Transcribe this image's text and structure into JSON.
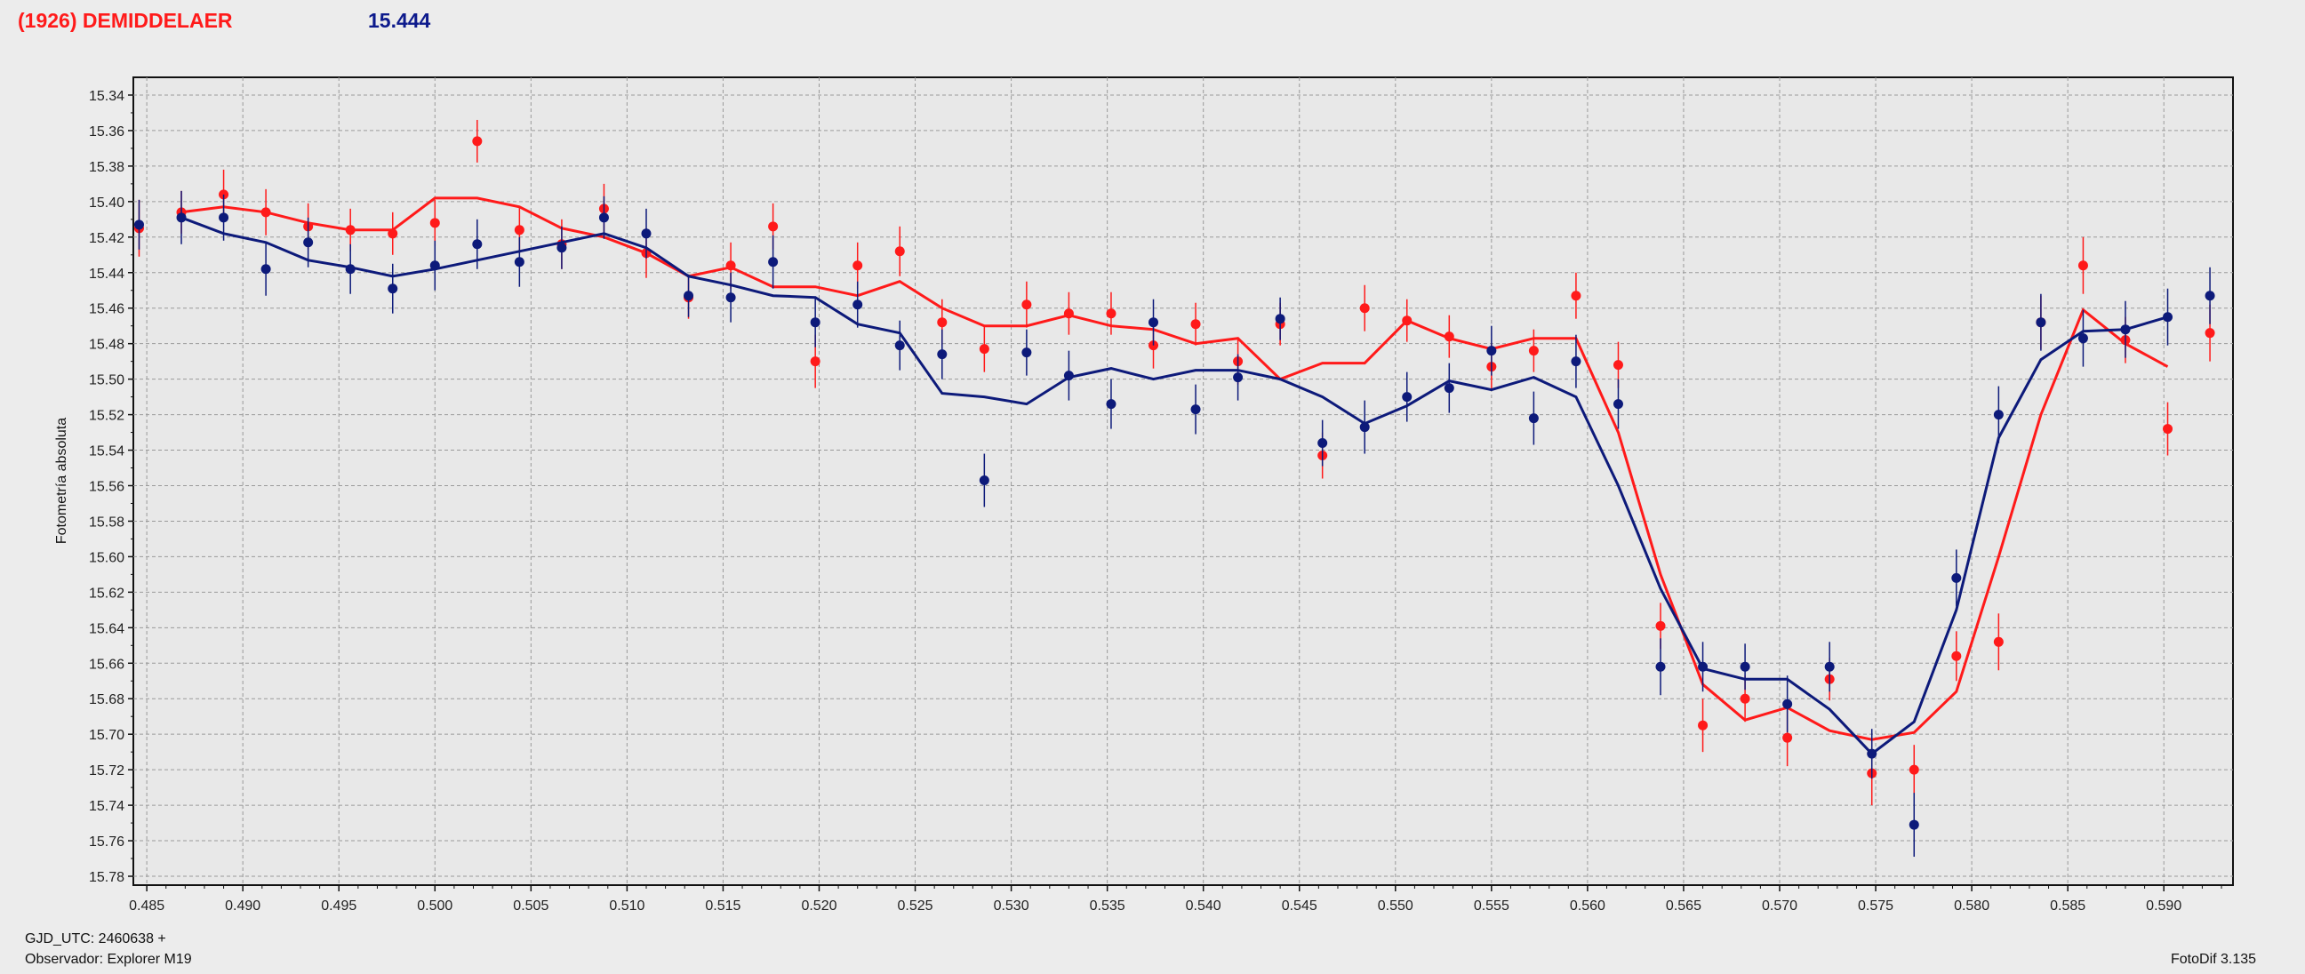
{
  "header": {
    "title": "(1926) DEMIDDELAER",
    "magnitude": "15.444"
  },
  "footer": {
    "gjd": "GJD_UTC: 2460638 +",
    "observer": "Observador: Explorer M19",
    "software": "FotoDif 3.135"
  },
  "colors": {
    "series_red": "#ff1a1a",
    "series_blue": "#0d1a7a",
    "plot_bg": "#e8e8e8"
  },
  "chart_data": {
    "type": "scatter",
    "title": "",
    "xlabel": "",
    "ylabel": "Fotometría absoluta",
    "xlim": [
      0.4843,
      0.5936
    ],
    "ylim": [
      15.33,
      15.785
    ],
    "y_inverted": true,
    "grid": true,
    "x_ticks": [
      "0.485",
      "0.490",
      "0.495",
      "0.500",
      "0.505",
      "0.510",
      "0.515",
      "0.520",
      "0.525",
      "0.530",
      "0.535",
      "0.540",
      "0.545",
      "0.550",
      "0.555",
      "0.560",
      "0.565",
      "0.570",
      "0.575",
      "0.580",
      "0.585",
      "0.590"
    ],
    "y_ticks": [
      "15.34",
      "15.36",
      "15.38",
      "15.40",
      "15.42",
      "15.44",
      "15.46",
      "15.48",
      "15.50",
      "15.52",
      "15.54",
      "15.56",
      "15.58",
      "15.60",
      "15.62",
      "15.64",
      "15.66",
      "15.68",
      "15.70",
      "15.72",
      "15.74",
      "15.76",
      "15.78"
    ],
    "series": [
      {
        "color": "red",
        "points": [
          {
            "x": 0.4846,
            "y": 15.415,
            "err": 0.016
          },
          {
            "x": 0.4868,
            "y": 15.406,
            "err": 0.012
          },
          {
            "x": 0.489,
            "y": 15.396,
            "err": 0.014
          },
          {
            "x": 0.4912,
            "y": 15.406,
            "err": 0.013
          },
          {
            "x": 0.4934,
            "y": 15.414,
            "err": 0.013
          },
          {
            "x": 0.4956,
            "y": 15.416,
            "err": 0.012
          },
          {
            "x": 0.4978,
            "y": 15.418,
            "err": 0.012
          },
          {
            "x": 0.5,
            "y": 15.412,
            "err": 0.013
          },
          {
            "x": 0.5022,
            "y": 15.366,
            "err": 0.012
          },
          {
            "x": 0.5044,
            "y": 15.416,
            "err": 0.013
          },
          {
            "x": 0.5066,
            "y": 15.424,
            "err": 0.014
          },
          {
            "x": 0.5088,
            "y": 15.404,
            "err": 0.014
          },
          {
            "x": 0.511,
            "y": 15.429,
            "err": 0.014
          },
          {
            "x": 0.5132,
            "y": 15.454,
            "err": 0.012
          },
          {
            "x": 0.5154,
            "y": 15.436,
            "err": 0.013
          },
          {
            "x": 0.5176,
            "y": 15.414,
            "err": 0.013
          },
          {
            "x": 0.5198,
            "y": 15.49,
            "err": 0.015
          },
          {
            "x": 0.522,
            "y": 15.436,
            "err": 0.013
          },
          {
            "x": 0.5242,
            "y": 15.428,
            "err": 0.014
          },
          {
            "x": 0.5264,
            "y": 15.468,
            "err": 0.013
          },
          {
            "x": 0.5286,
            "y": 15.483,
            "err": 0.013
          },
          {
            "x": 0.5308,
            "y": 15.458,
            "err": 0.013
          },
          {
            "x": 0.533,
            "y": 15.463,
            "err": 0.012
          },
          {
            "x": 0.5352,
            "y": 15.463,
            "err": 0.012
          },
          {
            "x": 0.5374,
            "y": 15.481,
            "err": 0.013
          },
          {
            "x": 0.5396,
            "y": 15.469,
            "err": 0.012
          },
          {
            "x": 0.5418,
            "y": 15.49,
            "err": 0.013
          },
          {
            "x": 0.544,
            "y": 15.469,
            "err": 0.012
          },
          {
            "x": 0.5462,
            "y": 15.543,
            "err": 0.013
          },
          {
            "x": 0.5484,
            "y": 15.46,
            "err": 0.013
          },
          {
            "x": 0.5506,
            "y": 15.467,
            "err": 0.012
          },
          {
            "x": 0.5528,
            "y": 15.476,
            "err": 0.012
          },
          {
            "x": 0.555,
            "y": 15.493,
            "err": 0.013
          },
          {
            "x": 0.5572,
            "y": 15.484,
            "err": 0.012
          },
          {
            "x": 0.5594,
            "y": 15.453,
            "err": 0.013
          },
          {
            "x": 0.5616,
            "y": 15.492,
            "err": 0.013
          },
          {
            "x": 0.5638,
            "y": 15.639,
            "err": 0.013
          },
          {
            "x": 0.566,
            "y": 15.695,
            "err": 0.015
          },
          {
            "x": 0.5682,
            "y": 15.68,
            "err": 0.013
          },
          {
            "x": 0.5704,
            "y": 15.702,
            "err": 0.016
          },
          {
            "x": 0.5726,
            "y": 15.669,
            "err": 0.012
          },
          {
            "x": 0.5748,
            "y": 15.722,
            "err": 0.018
          },
          {
            "x": 0.577,
            "y": 15.72,
            "err": 0.014
          },
          {
            "x": 0.5792,
            "y": 15.656,
            "err": 0.014
          },
          {
            "x": 0.5814,
            "y": 15.648,
            "err": 0.016
          },
          {
            "x": 0.5836,
            "y": 15.468,
            "err": 0.015
          },
          {
            "x": 0.5858,
            "y": 15.436,
            "err": 0.016
          },
          {
            "x": 0.588,
            "y": 15.478,
            "err": 0.013
          },
          {
            "x": 0.5902,
            "y": 15.528,
            "err": 0.015
          },
          {
            "x": 0.5924,
            "y": 15.474,
            "err": 0.016
          }
        ],
        "fit": [
          [
            0.4868,
            15.406
          ],
          [
            0.489,
            15.403
          ],
          [
            0.4912,
            15.406
          ],
          [
            0.4934,
            15.412
          ],
          [
            0.4956,
            15.416
          ],
          [
            0.4978,
            15.416
          ],
          [
            0.5,
            15.398
          ],
          [
            0.5022,
            15.398
          ],
          [
            0.5044,
            15.403
          ],
          [
            0.5066,
            15.415
          ],
          [
            0.5088,
            15.42
          ],
          [
            0.511,
            15.429
          ],
          [
            0.5132,
            15.442
          ],
          [
            0.5154,
            15.437
          ],
          [
            0.5176,
            15.448
          ],
          [
            0.5198,
            15.448
          ],
          [
            0.522,
            15.453
          ],
          [
            0.5242,
            15.445
          ],
          [
            0.5264,
            15.46
          ],
          [
            0.5286,
            15.47
          ],
          [
            0.5308,
            15.47
          ],
          [
            0.533,
            15.464
          ],
          [
            0.5352,
            15.47
          ],
          [
            0.5374,
            15.472
          ],
          [
            0.5396,
            15.48
          ],
          [
            0.5418,
            15.477
          ],
          [
            0.544,
            15.5
          ],
          [
            0.5462,
            15.491
          ],
          [
            0.5484,
            15.491
          ],
          [
            0.5506,
            15.467
          ],
          [
            0.5528,
            15.477
          ],
          [
            0.555,
            15.483
          ],
          [
            0.5572,
            15.477
          ],
          [
            0.5594,
            15.477
          ],
          [
            0.5616,
            15.53
          ],
          [
            0.5638,
            15.61
          ],
          [
            0.566,
            15.672
          ],
          [
            0.5682,
            15.692
          ],
          [
            0.5704,
            15.685
          ],
          [
            0.5726,
            15.698
          ],
          [
            0.5748,
            15.703
          ],
          [
            0.577,
            15.699
          ],
          [
            0.5792,
            15.676
          ],
          [
            0.5814,
            15.6
          ],
          [
            0.5836,
            15.52
          ],
          [
            0.5858,
            15.461
          ],
          [
            0.588,
            15.48
          ],
          [
            0.5902,
            15.493
          ]
        ]
      },
      {
        "color": "blue",
        "points": [
          {
            "x": 0.4846,
            "y": 15.413,
            "err": 0.014
          },
          {
            "x": 0.4868,
            "y": 15.409,
            "err": 0.015
          },
          {
            "x": 0.489,
            "y": 15.409,
            "err": 0.013
          },
          {
            "x": 0.4912,
            "y": 15.438,
            "err": 0.015
          },
          {
            "x": 0.4934,
            "y": 15.423,
            "err": 0.014
          },
          {
            "x": 0.4956,
            "y": 15.438,
            "err": 0.014
          },
          {
            "x": 0.4978,
            "y": 15.449,
            "err": 0.014
          },
          {
            "x": 0.5,
            "y": 15.436,
            "err": 0.014
          },
          {
            "x": 0.5022,
            "y": 15.424,
            "err": 0.014
          },
          {
            "x": 0.5044,
            "y": 15.434,
            "err": 0.014
          },
          {
            "x": 0.5066,
            "y": 15.426,
            "err": 0.012
          },
          {
            "x": 0.5088,
            "y": 15.409,
            "err": 0.012
          },
          {
            "x": 0.511,
            "y": 15.418,
            "err": 0.014
          },
          {
            "x": 0.5132,
            "y": 15.453,
            "err": 0.012
          },
          {
            "x": 0.5154,
            "y": 15.454,
            "err": 0.014
          },
          {
            "x": 0.5176,
            "y": 15.434,
            "err": 0.015
          },
          {
            "x": 0.5198,
            "y": 15.468,
            "err": 0.014
          },
          {
            "x": 0.522,
            "y": 15.458,
            "err": 0.013
          },
          {
            "x": 0.5242,
            "y": 15.481,
            "err": 0.014
          },
          {
            "x": 0.5264,
            "y": 15.486,
            "err": 0.014
          },
          {
            "x": 0.5286,
            "y": 15.557,
            "err": 0.015
          },
          {
            "x": 0.5308,
            "y": 15.485,
            "err": 0.013
          },
          {
            "x": 0.533,
            "y": 15.498,
            "err": 0.014
          },
          {
            "x": 0.5352,
            "y": 15.514,
            "err": 0.014
          },
          {
            "x": 0.5374,
            "y": 15.468,
            "err": 0.013
          },
          {
            "x": 0.5396,
            "y": 15.517,
            "err": 0.014
          },
          {
            "x": 0.5418,
            "y": 15.499,
            "err": 0.013
          },
          {
            "x": 0.544,
            "y": 15.466,
            "err": 0.012
          },
          {
            "x": 0.5462,
            "y": 15.536,
            "err": 0.013
          },
          {
            "x": 0.5484,
            "y": 15.527,
            "err": 0.015
          },
          {
            "x": 0.5506,
            "y": 15.51,
            "err": 0.014
          },
          {
            "x": 0.5528,
            "y": 15.505,
            "err": 0.014
          },
          {
            "x": 0.555,
            "y": 15.484,
            "err": 0.014
          },
          {
            "x": 0.5572,
            "y": 15.522,
            "err": 0.015
          },
          {
            "x": 0.5594,
            "y": 15.49,
            "err": 0.015
          },
          {
            "x": 0.5616,
            "y": 15.514,
            "err": 0.014
          },
          {
            "x": 0.5638,
            "y": 15.662,
            "err": 0.016
          },
          {
            "x": 0.566,
            "y": 15.662,
            "err": 0.014
          },
          {
            "x": 0.5682,
            "y": 15.662,
            "err": 0.013
          },
          {
            "x": 0.5704,
            "y": 15.683,
            "err": 0.016
          },
          {
            "x": 0.5726,
            "y": 15.662,
            "err": 0.014
          },
          {
            "x": 0.5748,
            "y": 15.711,
            "err": 0.014
          },
          {
            "x": 0.577,
            "y": 15.751,
            "err": 0.018
          },
          {
            "x": 0.5792,
            "y": 15.612,
            "err": 0.016
          },
          {
            "x": 0.5814,
            "y": 15.52,
            "err": 0.016
          },
          {
            "x": 0.5836,
            "y": 15.468,
            "err": 0.016
          },
          {
            "x": 0.5858,
            "y": 15.477,
            "err": 0.016
          },
          {
            "x": 0.588,
            "y": 15.472,
            "err": 0.016
          },
          {
            "x": 0.5902,
            "y": 15.465,
            "err": 0.016
          },
          {
            "x": 0.5924,
            "y": 15.453,
            "err": 0.016
          }
        ],
        "fit": [
          [
            0.4868,
            15.409
          ],
          [
            0.489,
            15.418
          ],
          [
            0.4912,
            15.423
          ],
          [
            0.4934,
            15.433
          ],
          [
            0.4956,
            15.437
          ],
          [
            0.4978,
            15.442
          ],
          [
            0.5,
            15.438
          ],
          [
            0.5022,
            15.433
          ],
          [
            0.5044,
            15.428
          ],
          [
            0.5066,
            15.423
          ],
          [
            0.5088,
            15.418
          ],
          [
            0.511,
            15.426
          ],
          [
            0.5132,
            15.442
          ],
          [
            0.5154,
            15.447
          ],
          [
            0.5176,
            15.453
          ],
          [
            0.5198,
            15.454
          ],
          [
            0.522,
            15.469
          ],
          [
            0.5242,
            15.474
          ],
          [
            0.5264,
            15.508
          ],
          [
            0.5286,
            15.51
          ],
          [
            0.5308,
            15.514
          ],
          [
            0.533,
            15.499
          ],
          [
            0.5352,
            15.494
          ],
          [
            0.5374,
            15.5
          ],
          [
            0.5396,
            15.495
          ],
          [
            0.5418,
            15.495
          ],
          [
            0.544,
            15.5
          ],
          [
            0.5462,
            15.51
          ],
          [
            0.5484,
            15.525
          ],
          [
            0.5506,
            15.515
          ],
          [
            0.5528,
            15.501
          ],
          [
            0.555,
            15.506
          ],
          [
            0.5572,
            15.499
          ],
          [
            0.5594,
            15.51
          ],
          [
            0.5616,
            15.56
          ],
          [
            0.5638,
            15.618
          ],
          [
            0.566,
            15.663
          ],
          [
            0.5682,
            15.669
          ],
          [
            0.5704,
            15.669
          ],
          [
            0.5726,
            15.686
          ],
          [
            0.5748,
            15.711
          ],
          [
            0.577,
            15.693
          ],
          [
            0.5792,
            15.63
          ],
          [
            0.5814,
            15.533
          ],
          [
            0.5836,
            15.489
          ],
          [
            0.5858,
            15.473
          ],
          [
            0.588,
            15.472
          ],
          [
            0.5902,
            15.465
          ]
        ]
      }
    ]
  }
}
